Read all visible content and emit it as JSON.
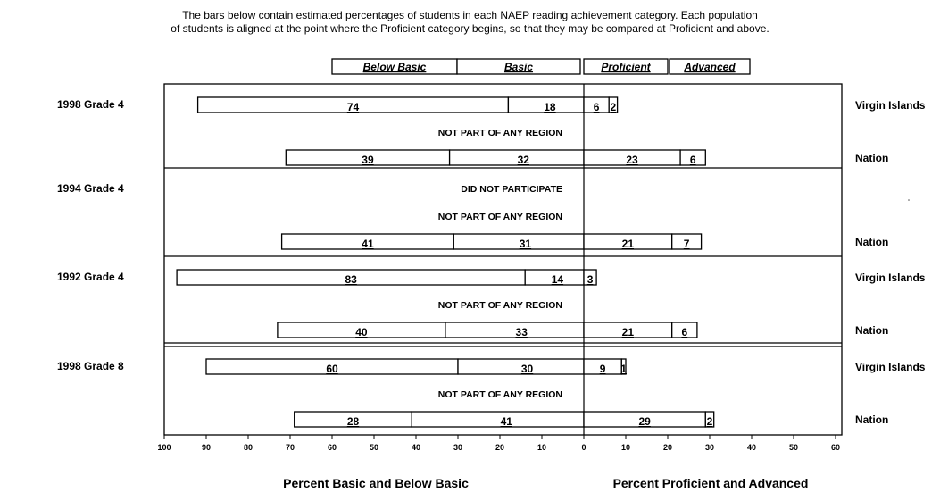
{
  "intro": {
    "line1": "The bars below contain estimated percentages of students in each NAEP reading achievement category.  Each population",
    "line2": "of students is aligned at the point where the Proficient category begins, so that they may be compared at Proficient and above."
  },
  "chart_data": {
    "type": "bar",
    "subtype": "diverging-stacked",
    "legend": [
      "Below Basic",
      "Basic",
      "Proficient",
      "Advanced"
    ],
    "legend_placement": "top-center",
    "x_left_label": "Percent Basic and Below Basic",
    "x_right_label": "Percent Proficient and Advanced",
    "x_left_ticks": [
      "100",
      "90",
      "80",
      "70",
      "60",
      "50",
      "40",
      "30",
      "20",
      "10",
      "0"
    ],
    "x_right_ticks": [
      "10",
      "20",
      "30",
      "40",
      "50",
      "60"
    ],
    "xlim_left": [
      0,
      100
    ],
    "xlim_right": [
      0,
      60
    ],
    "groups": [
      {
        "label": "1998 Grade 4",
        "rows": [
          {
            "kind": "bar",
            "name": "Virgin Islands",
            "values": [
              74,
              18,
              6,
              2
            ]
          },
          {
            "kind": "note",
            "text": "NOT PART OF ANY REGION"
          },
          {
            "kind": "bar",
            "name": "Nation",
            "values": [
              39,
              32,
              23,
              6
            ]
          }
        ]
      },
      {
        "label": "1994 Grade 4",
        "rows": [
          {
            "kind": "note",
            "text": "DID NOT PARTICIPATE"
          },
          {
            "kind": "note",
            "text": "NOT PART OF ANY REGION"
          },
          {
            "kind": "bar",
            "name": "Nation",
            "values": [
              41,
              31,
              21,
              7
            ]
          }
        ]
      },
      {
        "label": "1992 Grade 4",
        "rows": [
          {
            "kind": "bar",
            "name": "Virgin Islands",
            "values": [
              83,
              14,
              3,
              0
            ]
          },
          {
            "kind": "note",
            "text": "NOT PART OF ANY REGION"
          },
          {
            "kind": "bar",
            "name": "Nation",
            "values": [
              40,
              33,
              21,
              6
            ]
          }
        ]
      },
      {
        "label": "1998 Grade 8",
        "rows": [
          {
            "kind": "bar",
            "name": "Virgin Islands",
            "values": [
              60,
              30,
              9,
              1
            ]
          },
          {
            "kind": "note",
            "text": "NOT PART OF ANY REGION"
          },
          {
            "kind": "bar",
            "name": "Nation",
            "values": [
              28,
              41,
              29,
              2
            ]
          }
        ]
      }
    ]
  }
}
